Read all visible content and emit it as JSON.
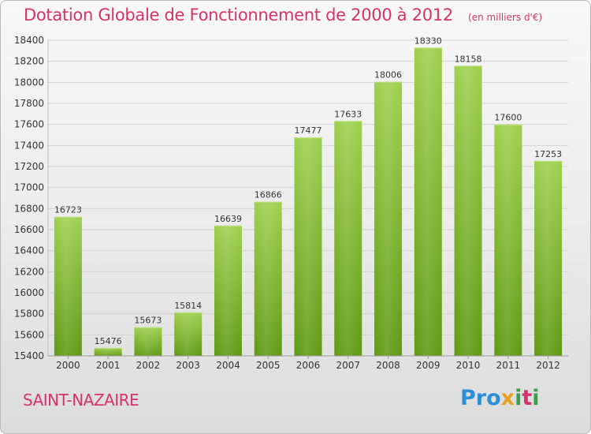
{
  "title": "Dotation Globale de Fonctionnement de 2000 à 2012",
  "subtitle": "(en milliers d'€)",
  "commune": "SAINT-NAZAIRE",
  "logo": "Proxiti",
  "colors": {
    "title": "#d6336c",
    "bar_light": "#9ed04e",
    "bar_dark": "#5f9a13",
    "grid": "#cfcfcf"
  },
  "chart_data": {
    "type": "bar",
    "title": "Dotation Globale de Fonctionnement de 2000 à 2012",
    "subtitle": "(en milliers d'€)",
    "categories": [
      "2000",
      "2001",
      "2002",
      "2003",
      "2004",
      "2005",
      "2006",
      "2007",
      "2008",
      "2009",
      "2010",
      "2011",
      "2012"
    ],
    "values": [
      16723,
      15476,
      15673,
      15814,
      16639,
      16866,
      17477,
      17633,
      18006,
      18330,
      18158,
      17600,
      17253
    ],
    "ylim": [
      15400,
      18400
    ],
    "yticks": [
      15400,
      15600,
      15800,
      16000,
      16200,
      16400,
      16600,
      16800,
      17000,
      17200,
      17400,
      17600,
      17800,
      18000,
      18200,
      18400
    ],
    "grid": true,
    "data_labels": true
  }
}
